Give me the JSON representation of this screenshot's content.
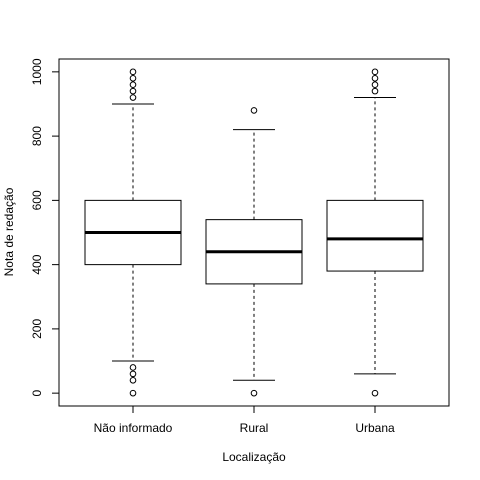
{
  "chart_data": {
    "type": "boxplot",
    "title": "",
    "xlabel": "Localização",
    "ylabel": "Nota de redação",
    "ylim": [
      -40,
      1040
    ],
    "yticks": [
      0,
      200,
      400,
      600,
      800,
      1000
    ],
    "grid": false,
    "categories": [
      "Não informado",
      "Rural",
      "Urbana"
    ],
    "boxes": [
      {
        "category": "Não informado",
        "whisker_low": 100,
        "q1": 400,
        "median": 500,
        "q3": 600,
        "whisker_high": 900,
        "outliers": [
          0,
          40,
          60,
          80,
          920,
          940,
          960,
          980,
          1000
        ]
      },
      {
        "category": "Rural",
        "whisker_low": 40,
        "q1": 340,
        "median": 440,
        "q3": 540,
        "whisker_high": 820,
        "outliers": [
          0,
          880
        ]
      },
      {
        "category": "Urbana",
        "whisker_low": 60,
        "q1": 380,
        "median": 480,
        "q3": 600,
        "whisker_high": 920,
        "outliers": [
          0,
          940,
          960,
          980,
          1000
        ]
      }
    ]
  }
}
